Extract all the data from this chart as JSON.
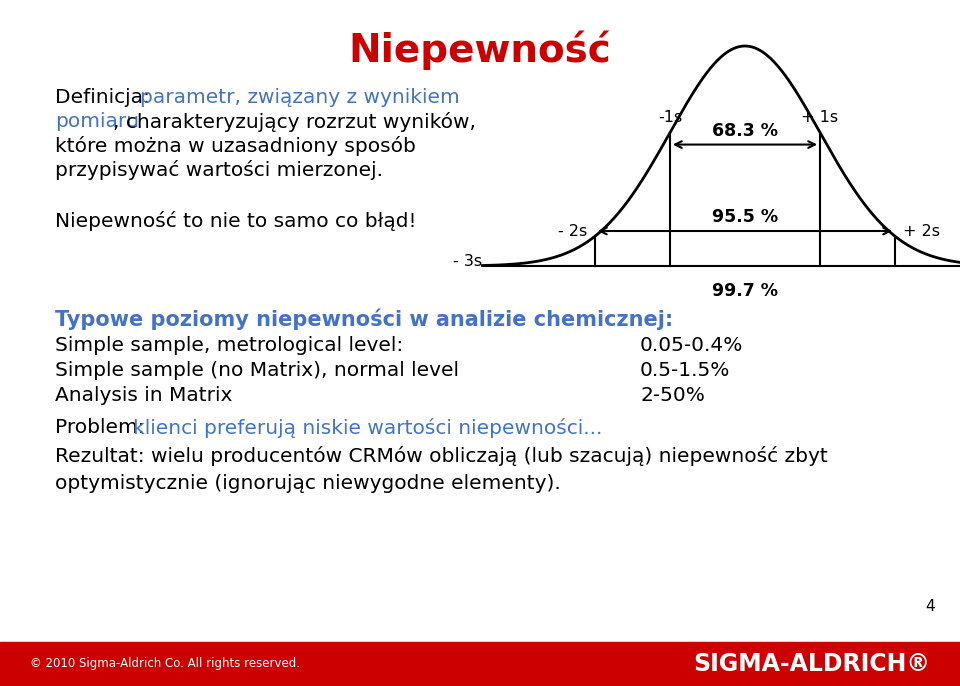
{
  "title": "Niepewność",
  "title_color": "#cc0000",
  "bg_color": "#ffffff",
  "blue_color": "#4472c4",
  "black_color": "#000000",
  "red_color": "#cc0000",
  "percent_68": "68.3 %",
  "percent_95": "95.5 %",
  "percent_99": "99.7 %",
  "section_title": "Typowe poziomy niepewności w analizie chemicznej:",
  "section_title_color": "#4472c4",
  "rows": [
    {
      "label": "Simple sample, metrological level:",
      "value": "0.05-0.4%"
    },
    {
      "label": "Simple sample (no Matrix), normal level",
      "value": "0.5-1.5%"
    },
    {
      "label": "Analysis in Matrix",
      "value": "2-50%"
    }
  ],
  "problem_blue": "klienci preferują niskie wartości niepewności...",
  "result_line1": "Rezultat: wielu producentów CRMów obliczają (lub szacują) niepewność zbyt",
  "result_line2": "optymistycznie (ignorując niewygodne elementy).",
  "footer_left": "© 2010 Sigma-Aldrich Co. All rights reserved.",
  "footer_right": "SIGMA-ALDRICH®",
  "footer_bg": "#cc0000",
  "page_number": "4"
}
